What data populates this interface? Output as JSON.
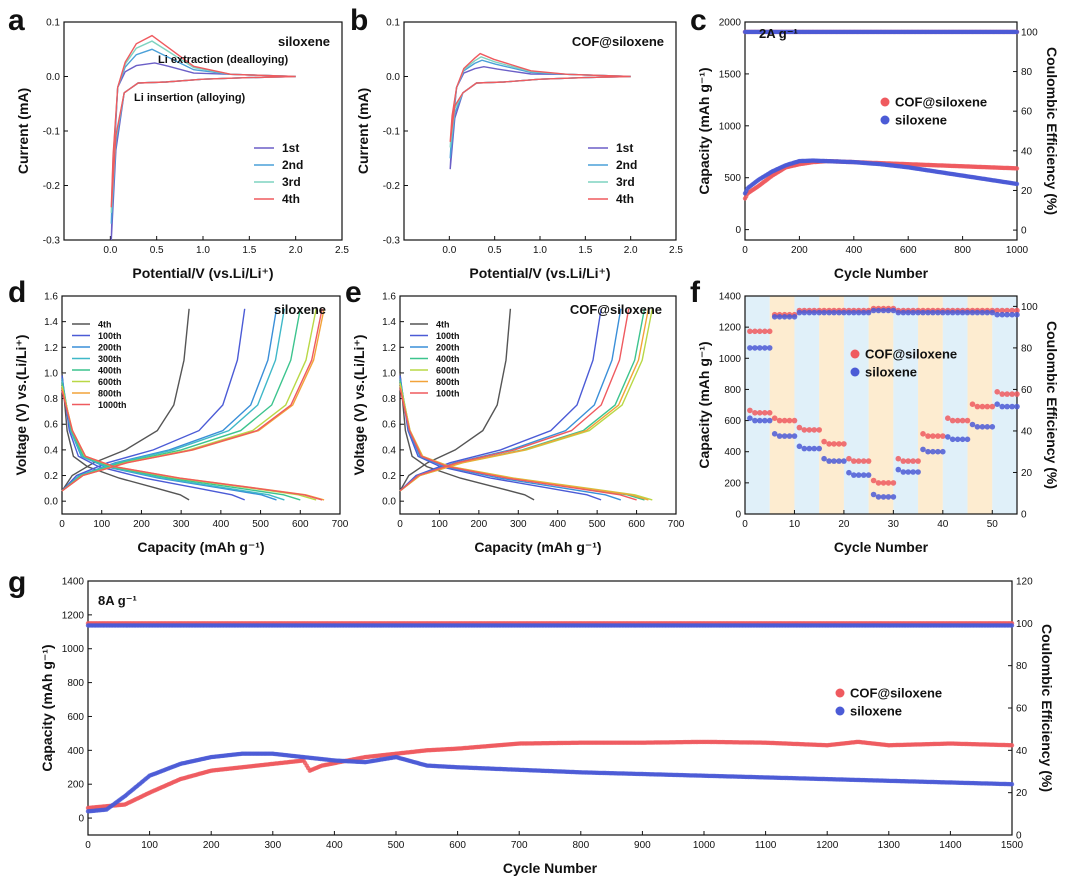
{
  "colors": {
    "blue": "#4b5bd6",
    "red": "#ef5a5f",
    "cv1": "#6b5fc7",
    "cv2": "#4aa0d8",
    "cv3": "#7fd3c0",
    "cv4": "#ef5a5f",
    "gray": "#555555",
    "bandBlue": "#d8ecf7",
    "bandOrange": "#fde7c4"
  },
  "chart_data": [
    {
      "id": "a",
      "type": "line",
      "panel_label": "a",
      "title": "siloxene",
      "xlabel": "Potential/V (vs.Li/Li⁺)",
      "ylabel": "Current (mA)",
      "xlim": [
        -0.5,
        2.5
      ],
      "ylim": [
        -0.3,
        0.1
      ],
      "xticks": [
        "0.0",
        "0.5",
        "1.0",
        "1.5",
        "2.0",
        "2.5"
      ],
      "yticks": [
        "-0.3",
        "-0.2",
        "-0.1",
        "0.0",
        "0.1"
      ],
      "annotations": [
        "Li extraction (dealloying)",
        "Li insertion (alloying)"
      ],
      "legend": [
        "1st",
        "2nd",
        "3rd",
        "4th"
      ],
      "series": [
        {
          "name": "1st",
          "color": "cv1",
          "peak_current": 0.025,
          "peak_potential": 0.48,
          "min_current": -0.3
        },
        {
          "name": "2nd",
          "color": "cv2",
          "peak_current": 0.05,
          "peak_potential": 0.45,
          "min_current": -0.27
        },
        {
          "name": "3rd",
          "color": "cv3",
          "peak_current": 0.065,
          "peak_potential": 0.45,
          "min_current": -0.25
        },
        {
          "name": "4th",
          "color": "cv4",
          "peak_current": 0.075,
          "peak_potential": 0.45,
          "min_current": -0.24
        }
      ]
    },
    {
      "id": "b",
      "type": "line",
      "panel_label": "b",
      "title": "COF@siloxene",
      "xlabel": "Potential/V (vs.Li/Li⁺)",
      "ylabel": "Current (mA)",
      "xlim": [
        -0.5,
        2.5
      ],
      "ylim": [
        -0.3,
        0.1
      ],
      "xticks": [
        "0.0",
        "0.5",
        "1.0",
        "1.5",
        "2.0",
        "2.5"
      ],
      "yticks": [
        "-0.3",
        "-0.2",
        "-0.1",
        "0.0",
        "0.1"
      ],
      "legend": [
        "1st",
        "2nd",
        "3rd",
        "4th"
      ],
      "series": [
        {
          "name": "1st",
          "color": "cv1",
          "peak_current": 0.018,
          "peak_potential": 0.38,
          "min_current": -0.17
        },
        {
          "name": "2nd",
          "color": "cv2",
          "peak_current": 0.03,
          "peak_potential": 0.36,
          "min_current": -0.15
        },
        {
          "name": "3rd",
          "color": "cv3",
          "peak_current": 0.036,
          "peak_potential": 0.35,
          "min_current": -0.13
        },
        {
          "name": "4th",
          "color": "cv4",
          "peak_current": 0.042,
          "peak_potential": 0.34,
          "min_current": -0.12
        }
      ]
    },
    {
      "id": "c",
      "type": "scatter",
      "panel_label": "c",
      "annotation": "2A g⁻¹",
      "xlabel": "Cycle Number",
      "ylabel": "Capacity (mAh g⁻¹)",
      "y2label": "Coulombic Efficiency (%)",
      "xlim": [
        0,
        1000
      ],
      "ylim": [
        -100,
        2000
      ],
      "y2lim": [
        -5,
        105
      ],
      "xticks": [
        "0",
        "200",
        "400",
        "600",
        "800",
        "1000"
      ],
      "yticks": [
        "0",
        "500",
        "1000",
        "1500",
        "2000"
      ],
      "y2ticks": [
        "0",
        "20",
        "40",
        "60",
        "80",
        "100"
      ],
      "legend": [
        "COF@siloxene",
        "siloxene"
      ],
      "series": [
        {
          "name": "COF@siloxene",
          "color": "red",
          "axis": "left",
          "x": [
            1,
            10,
            50,
            100,
            150,
            200,
            250,
            300,
            400,
            500,
            600,
            700,
            800,
            900,
            1000
          ],
          "y": [
            300,
            350,
            420,
            520,
            600,
            630,
            650,
            660,
            650,
            640,
            630,
            620,
            610,
            600,
            590
          ]
        },
        {
          "name": "siloxene",
          "color": "blue",
          "axis": "left",
          "x": [
            1,
            10,
            50,
            100,
            150,
            200,
            250,
            300,
            400,
            500,
            600,
            700,
            800,
            900,
            1000
          ],
          "y": [
            350,
            400,
            480,
            560,
            620,
            660,
            665,
            660,
            650,
            630,
            600,
            560,
            520,
            480,
            440
          ]
        },
        {
          "name": "COF@siloxene CE",
          "color": "red",
          "axis": "right",
          "x": [
            0,
            1000
          ],
          "y": [
            100,
            100
          ]
        },
        {
          "name": "siloxene CE",
          "color": "blue",
          "axis": "right",
          "x": [
            0,
            1000
          ],
          "y": [
            100,
            100
          ]
        }
      ]
    },
    {
      "id": "d",
      "type": "line",
      "panel_label": "d",
      "title": "siloxene",
      "xlabel": "Capacity (mAh g⁻¹)",
      "ylabel": "Voltage (V) vs.(Li/Li⁺)",
      "xlim": [
        0,
        700
      ],
      "ylim": [
        -0.1,
        1.6
      ],
      "xticks": [
        "0",
        "100",
        "200",
        "300",
        "400",
        "500",
        "600",
        "700"
      ],
      "yticks": [
        "0.0",
        "0.2",
        "0.4",
        "0.6",
        "0.8",
        "1.0",
        "1.2",
        "1.4",
        "1.6"
      ],
      "legend": [
        "4th",
        "100th",
        "200th",
        "300th",
        "400th",
        "600th",
        "800th",
        "1000th"
      ],
      "series": [
        {
          "name": "4th",
          "color": "#555555",
          "discharge_end": 320,
          "charge_end": 320
        },
        {
          "name": "100th",
          "color": "#4b5bd6",
          "discharge_end": 460,
          "charge_end": 460
        },
        {
          "name": "200th",
          "color": "#3a8fd8",
          "discharge_end": 540,
          "charge_end": 540
        },
        {
          "name": "300th",
          "color": "#3fb8c8",
          "discharge_end": 560,
          "charge_end": 560
        },
        {
          "name": "400th",
          "color": "#3cc48e",
          "discharge_end": 600,
          "charge_end": 600
        },
        {
          "name": "600th",
          "color": "#b9d846",
          "discharge_end": 640,
          "charge_end": 640
        },
        {
          "name": "800th",
          "color": "#f2a33a",
          "discharge_end": 660,
          "charge_end": 660
        },
        {
          "name": "1000th",
          "color": "#ef5a5f",
          "discharge_end": 655,
          "charge_end": 655
        }
      ]
    },
    {
      "id": "e",
      "type": "line",
      "panel_label": "e",
      "title": "COF@siloxene",
      "xlabel": "Capacity (mAh g⁻¹)",
      "ylabel": "Voltage (V) vs.(Li/Li⁺)",
      "xlim": [
        0,
        700
      ],
      "ylim": [
        -0.1,
        1.6
      ],
      "xticks": [
        "0",
        "100",
        "200",
        "300",
        "400",
        "500",
        "600",
        "700"
      ],
      "yticks": [
        "0.0",
        "0.2",
        "0.4",
        "0.6",
        "0.8",
        "1.0",
        "1.2",
        "1.4",
        "1.6"
      ],
      "legend": [
        "4th",
        "100th",
        "200th",
        "400th",
        "600th",
        "800th",
        "100th"
      ],
      "series": [
        {
          "name": "4th",
          "color": "#555555",
          "discharge_end": 340,
          "charge_end": 280
        },
        {
          "name": "100th",
          "color": "#4b5bd6",
          "discharge_end": 510,
          "charge_end": 510
        },
        {
          "name": "200th",
          "color": "#3a8fd8",
          "discharge_end": 560,
          "charge_end": 560
        },
        {
          "name": "400th",
          "color": "#3cc48e",
          "discharge_end": 620,
          "charge_end": 620
        },
        {
          "name": "600th",
          "color": "#b9d846",
          "discharge_end": 640,
          "charge_end": 640
        },
        {
          "name": "800th",
          "color": "#f2a33a",
          "discharge_end": 630,
          "charge_end": 630
        },
        {
          "name": "100th",
          "color": "#ef5a5f",
          "discharge_end": 600,
          "charge_end": 580
        }
      ]
    },
    {
      "id": "f",
      "type": "scatter",
      "panel_label": "f",
      "xlabel": "Cycle Number",
      "ylabel": "Capacity (mAh g⁻¹)",
      "y2label": "Coulombic Efficiency (%)",
      "xlim": [
        0,
        55
      ],
      "ylim": [
        0,
        1400
      ],
      "y2lim": [
        0,
        105
      ],
      "xticks": [
        "0",
        "10",
        "20",
        "30",
        "40",
        "50"
      ],
      "yticks": [
        "0",
        "200",
        "400",
        "600",
        "800",
        "1000",
        "1200",
        "1400"
      ],
      "y2ticks": [
        "0",
        "20",
        "40",
        "60",
        "80",
        "100"
      ],
      "legend": [
        "COF@siloxene",
        "siloxene"
      ],
      "bands_every": 5,
      "series": [
        {
          "name": "COF@siloxene",
          "color": "red",
          "axis": "left",
          "step_values": [
            650,
            600,
            540,
            450,
            340,
            200,
            340,
            500,
            600,
            690,
            770
          ]
        },
        {
          "name": "siloxene",
          "color": "blue",
          "axis": "left",
          "step_values": [
            600,
            500,
            420,
            340,
            250,
            110,
            270,
            400,
            480,
            560,
            690
          ]
        },
        {
          "name": "COF@siloxene CE",
          "color": "red",
          "axis": "right",
          "step_values": [
            88,
            96,
            98,
            98,
            98,
            99,
            98,
            98,
            98,
            98,
            98
          ]
        },
        {
          "name": "siloxene CE",
          "color": "blue",
          "axis": "right",
          "step_values": [
            80,
            95,
            97,
            97,
            97,
            98,
            97,
            97,
            97,
            97,
            96
          ]
        }
      ]
    },
    {
      "id": "g",
      "type": "scatter",
      "panel_label": "g",
      "annotation": "8A g⁻¹",
      "xlabel": "Cycle Number",
      "ylabel": "Capacity (mAh g⁻¹)",
      "y2label": "Coulombic Efficiency (%)",
      "xlim": [
        0,
        1500
      ],
      "ylim": [
        -100,
        1400
      ],
      "y2lim": [
        0,
        120
      ],
      "xticks": [
        "0",
        "100",
        "200",
        "300",
        "400",
        "500",
        "600",
        "700",
        "800",
        "900",
        "1000",
        "1100",
        "1200",
        "1300",
        "1400",
        "1500"
      ],
      "yticks": [
        "0",
        "200",
        "400",
        "600",
        "800",
        "1000",
        "1200",
        "1400"
      ],
      "y2ticks": [
        "0",
        "20",
        "40",
        "60",
        "80",
        "100",
        "120"
      ],
      "legend": [
        "COF@siloxene",
        "siloxene"
      ],
      "series": [
        {
          "name": "COF@siloxene",
          "color": "red",
          "axis": "left",
          "x": [
            1,
            30,
            60,
            100,
            150,
            200,
            250,
            300,
            350,
            360,
            380,
            450,
            500,
            550,
            600,
            700,
            800,
            900,
            1000,
            1100,
            1200,
            1250,
            1300,
            1400,
            1500
          ],
          "y": [
            60,
            70,
            80,
            150,
            230,
            280,
            300,
            320,
            340,
            280,
            310,
            360,
            380,
            400,
            410,
            440,
            445,
            445,
            450,
            445,
            430,
            450,
            430,
            440,
            430
          ]
        },
        {
          "name": "siloxene",
          "color": "blue",
          "axis": "left",
          "x": [
            1,
            30,
            60,
            100,
            150,
            200,
            250,
            300,
            350,
            400,
            450,
            500,
            550,
            600,
            700,
            800,
            900,
            1000,
            1100,
            1200,
            1300,
            1400,
            1500
          ],
          "y": [
            40,
            50,
            130,
            250,
            320,
            360,
            380,
            380,
            360,
            340,
            330,
            360,
            310,
            300,
            285,
            270,
            260,
            250,
            240,
            230,
            220,
            210,
            200
          ]
        },
        {
          "name": "COF@siloxene CE",
          "color": "red",
          "axis": "right",
          "x": [
            0,
            1500
          ],
          "y": [
            100,
            100
          ]
        },
        {
          "name": "siloxene CE",
          "color": "blue",
          "axis": "right",
          "x": [
            0,
            1500
          ],
          "y": [
            99,
            99
          ]
        }
      ]
    }
  ]
}
